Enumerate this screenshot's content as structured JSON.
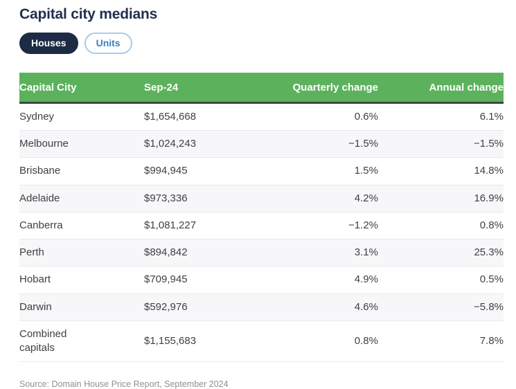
{
  "header": {
    "title": "Capital city medians"
  },
  "toggle": {
    "houses_label": "Houses",
    "units_label": "Units",
    "selected": "Houses"
  },
  "table": {
    "columns": [
      "Capital City",
      "Sep-24",
      "Quarterly change",
      "Annual change"
    ],
    "rows": [
      {
        "city": "Sydney",
        "median": "$1,654,668",
        "quarterly": "0.6%",
        "annual": "6.1%"
      },
      {
        "city": "Melbourne",
        "median": "$1,024,243",
        "quarterly": "−1.5%",
        "annual": "−1.5%"
      },
      {
        "city": "Brisbane",
        "median": "$994,945",
        "quarterly": "1.5%",
        "annual": "14.8%"
      },
      {
        "city": "Adelaide",
        "median": "$973,336",
        "quarterly": "4.2%",
        "annual": "16.9%"
      },
      {
        "city": "Canberra",
        "median": "$1,081,227",
        "quarterly": "−1.2%",
        "annual": "0.8%"
      },
      {
        "city": "Perth",
        "median": "$894,842",
        "quarterly": "3.1%",
        "annual": "25.3%"
      },
      {
        "city": "Hobart",
        "median": "$709,945",
        "quarterly": "4.9%",
        "annual": "0.5%"
      },
      {
        "city": "Darwin",
        "median": "$592,976",
        "quarterly": "4.6%",
        "annual": "−5.8%"
      },
      {
        "city": "Combined capitals",
        "median": "$1,155,683",
        "quarterly": "0.8%",
        "annual": "7.8%"
      }
    ]
  },
  "footer": {
    "source": "Source: Domain House Price Report, September 2024"
  },
  "colors": {
    "title_navy": "#22304e",
    "selected_pill_navy": "#1d2b44",
    "units_blue": "#3d7fc1",
    "units_border_blue": "#a7cdec",
    "header_green": "#5cb25c",
    "header_underline": "#3c483e",
    "row_stripe": "#f7f7f9",
    "row_divider": "#e9e9ed",
    "body_text": "#3f3f42",
    "source_gray": "#8f9094"
  },
  "chart_data": {
    "type": "table",
    "title": "Capital city medians",
    "selected_series": "Houses",
    "columns": [
      "Capital City",
      "Sep-24",
      "Quarterly change",
      "Annual change"
    ],
    "rows": [
      [
        "Sydney",
        1654668,
        0.6,
        6.1
      ],
      [
        "Melbourne",
        1024243,
        -1.5,
        -1.5
      ],
      [
        "Brisbane",
        994945,
        1.5,
        14.8
      ],
      [
        "Adelaide",
        973336,
        4.2,
        16.9
      ],
      [
        "Canberra",
        1081227,
        -1.2,
        0.8
      ],
      [
        "Perth",
        894842,
        3.1,
        25.3
      ],
      [
        "Hobart",
        709945,
        4.9,
        0.5
      ],
      [
        "Darwin",
        592976,
        4.6,
        -5.8
      ],
      [
        "Combined capitals",
        1155683,
        0.8,
        7.8
      ]
    ]
  }
}
